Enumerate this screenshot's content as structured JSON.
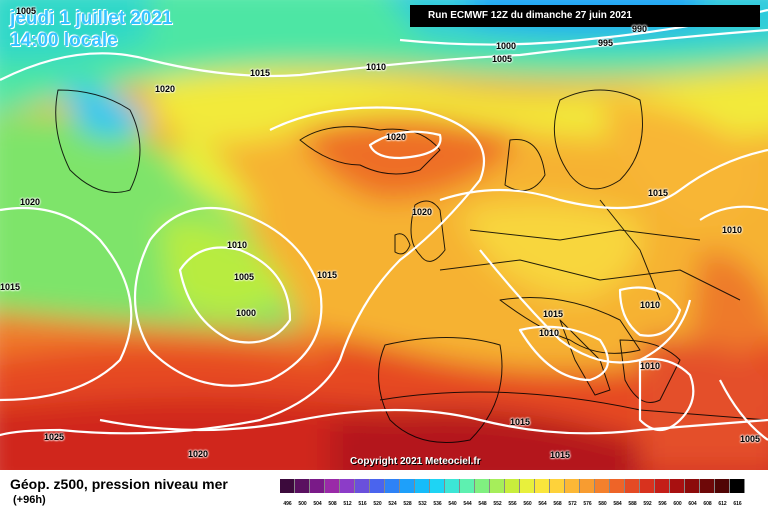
{
  "header": {
    "date_line1": "jeudi 1 juillet 2021",
    "date_line2": "14:00 locale",
    "run_info": "Run ECMWF 12Z du dimanche 27 juin 2021"
  },
  "map": {
    "isobars": [
      "1005",
      "990",
      "1000",
      "995",
      "1005",
      "1015",
      "1010",
      "1020",
      "1020",
      "1020",
      "1015",
      "1010",
      "1010",
      "1005",
      "1015",
      "1000",
      "1020",
      "1015",
      "1010",
      "1010",
      "1010",
      "1015",
      "1025",
      "1020",
      "1015",
      "1015",
      "1005"
    ],
    "copyright": "Copyright 2021 Meteociel.fr"
  },
  "footer": {
    "title": "Géop. z500, pression niveau mer",
    "subtitle": "(+96h)",
    "scale_values": [
      "496",
      "500",
      "504",
      "508",
      "512",
      "516",
      "520",
      "524",
      "528",
      "532",
      "536",
      "540",
      "544",
      "548",
      "552",
      "556",
      "560",
      "564",
      "568",
      "572",
      "576",
      "580",
      "584",
      "588",
      "592",
      "596",
      "600",
      "604",
      "608",
      "612",
      "616"
    ],
    "scale_colors": [
      "#3c0a3c",
      "#5a1060",
      "#7a1a88",
      "#9a2aa8",
      "#8c3cc8",
      "#6a50dc",
      "#4a64ee",
      "#2e82f6",
      "#1ea0fa",
      "#16bcfa",
      "#1ed4f4",
      "#3ce6d6",
      "#5ef0b0",
      "#80f080",
      "#a6ee5a",
      "#c8ee3c",
      "#e8f03c",
      "#fae63c",
      "#fed23a",
      "#fcb836",
      "#f89c30",
      "#f4802c",
      "#ee6428",
      "#e44a24",
      "#d8321e",
      "#c41e18",
      "#a81010",
      "#8c0a0a",
      "#6e0808",
      "#500404",
      "#000000"
    ]
  }
}
